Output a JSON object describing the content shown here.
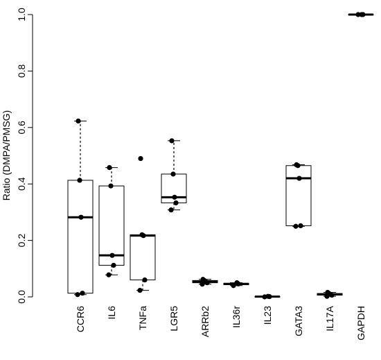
{
  "chart_data": {
    "type": "box",
    "title": "",
    "xlabel": "",
    "ylabel": "Ratio (DMPA/PMSG)",
    "ylim": [
      0,
      1.0
    ],
    "yticks": [
      "0.0",
      "0.2",
      "0.4",
      "0.6",
      "0.8",
      "1.0"
    ],
    "grid": false,
    "categories": [
      "CCR6",
      "IL6",
      "TNFa",
      "LGR5",
      "ARRb2",
      "IL36r",
      "IL23",
      "GATA3",
      "IL17A",
      "GAPDH"
    ],
    "boxes": [
      {
        "category": "CCR6",
        "whisker_low": 0.008,
        "q1": 0.013,
        "median": 0.282,
        "q3": 0.413,
        "whisker_high": 0.623,
        "points": [
          0.008,
          0.013,
          0.282,
          0.413,
          0.623
        ]
      },
      {
        "category": "IL6",
        "whisker_low": 0.078,
        "q1": 0.112,
        "median": 0.147,
        "q3": 0.393,
        "whisker_high": 0.458,
        "points": [
          0.078,
          0.112,
          0.147,
          0.393,
          0.458
        ]
      },
      {
        "category": "TNFa",
        "whisker_low": 0.023,
        "q1": 0.06,
        "median": 0.217,
        "q3": 0.22,
        "whisker_high": 0.22,
        "points": [
          0.023,
          0.06,
          0.217,
          0.22,
          0.49
        ]
      },
      {
        "category": "LGR5",
        "whisker_low": 0.308,
        "q1": 0.333,
        "median": 0.353,
        "q3": 0.435,
        "whisker_high": 0.553,
        "points": [
          0.308,
          0.333,
          0.353,
          0.435,
          0.553
        ]
      },
      {
        "category": "ARRb2",
        "whisker_low": 0.045,
        "q1": 0.05,
        "median": 0.054,
        "q3": 0.058,
        "whisker_high": 0.062,
        "points": [
          0.045,
          0.05,
          0.054,
          0.058,
          0.062
        ]
      },
      {
        "category": "IL36r",
        "whisker_low": 0.04,
        "q1": 0.043,
        "median": 0.046,
        "q3": 0.048,
        "whisker_high": 0.05,
        "points": [
          0.04,
          0.046,
          0.05
        ]
      },
      {
        "category": "IL23",
        "whisker_low": 0.0,
        "q1": 0.0,
        "median": 0.001,
        "q3": 0.001,
        "whisker_high": 0.002,
        "points": [
          0.0,
          0.001,
          0.002
        ]
      },
      {
        "category": "GATA3",
        "whisker_low": 0.25,
        "q1": 0.252,
        "median": 0.42,
        "q3": 0.465,
        "whisker_high": 0.468,
        "points": [
          0.25,
          0.252,
          0.42,
          0.465,
          0.468
        ]
      },
      {
        "category": "IL17A",
        "whisker_low": 0.002,
        "q1": 0.006,
        "median": 0.009,
        "q3": 0.012,
        "whisker_high": 0.016,
        "points": [
          0.002,
          0.006,
          0.009,
          0.012,
          0.016
        ]
      },
      {
        "category": "GAPDH",
        "whisker_low": 1.0,
        "q1": 1.0,
        "median": 1.0,
        "q3": 1.0,
        "whisker_high": 1.0,
        "points": [
          1.0,
          1.0,
          1.0
        ]
      }
    ]
  }
}
